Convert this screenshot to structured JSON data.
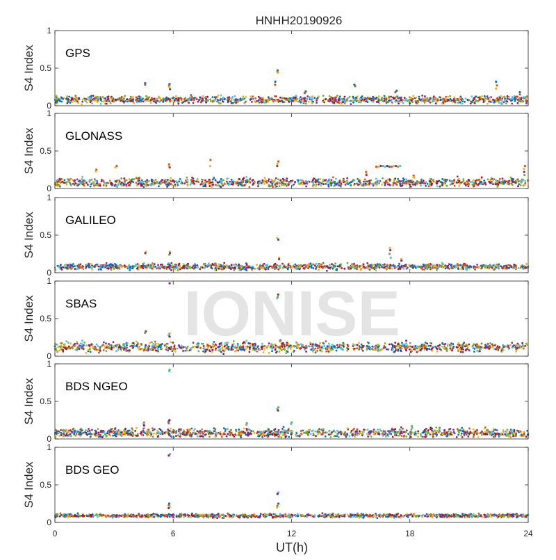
{
  "figure": {
    "title": "HNHH20190926",
    "xlabel": "UT(h)",
    "xticks": [
      "0",
      "6",
      "12",
      "18",
      "24"
    ],
    "watermark": "IONISE"
  },
  "palette": [
    "#0072BD",
    "#D95319",
    "#EDB120",
    "#7E2F8E",
    "#77AC30",
    "#4DBEEE",
    "#A2142F"
  ],
  "chart_data": [
    {
      "type": "scatter",
      "label": "GPS",
      "ylabel": "S4 Index",
      "yticks": [
        "0",
        "0.5",
        "1"
      ],
      "xlim": [
        0,
        24
      ],
      "ylim": [
        0,
        1
      ],
      "baseline": 0.08,
      "noise": 0.03,
      "features": [
        {
          "x": 4.6,
          "values": [
            0.3,
            0.28
          ]
        },
        {
          "x": 5.8,
          "values": [
            0.29,
            0.27,
            0.25,
            0.22
          ]
        },
        {
          "x": 11.3,
          "values": [
            0.47,
            0.45,
            0.44
          ]
        },
        {
          "x": 11.2,
          "values": [
            0.32,
            0.28
          ]
        },
        {
          "x": 12.7,
          "values": [
            0.19,
            0.17
          ]
        },
        {
          "x": 15.2,
          "values": [
            0.28,
            0.26
          ]
        },
        {
          "x": 17.3,
          "values": [
            0.2,
            0.18
          ]
        },
        {
          "x": 22.4,
          "values": [
            0.32,
            0.27,
            0.23
          ]
        },
        {
          "x": 23.6,
          "values": [
            0.18,
            0.15
          ]
        }
      ]
    },
    {
      "type": "scatter",
      "label": "GLONASS",
      "ylabel": "S4 Index",
      "yticks": [
        "0",
        "0.5",
        "1"
      ],
      "xlim": [
        0,
        24
      ],
      "ylim": [
        0,
        1
      ],
      "baseline": 0.08,
      "noise": 0.035,
      "features": [
        {
          "x": 2.1,
          "values": [
            0.25,
            0.23
          ]
        },
        {
          "x": 3.1,
          "values": [
            0.3,
            0.28
          ]
        },
        {
          "x": 5.8,
          "values": [
            0.32,
            0.3,
            0.28
          ]
        },
        {
          "x": 7.9,
          "values": [
            0.38,
            0.3
          ]
        },
        {
          "x": 11.3,
          "values": [
            0.36,
            0.33,
            0.3
          ]
        },
        {
          "x": 15.8,
          "values": [
            0.22,
            0.2,
            0.18
          ]
        },
        {
          "x": 16.3,
          "values": [
            0.29,
            0.29,
            0.3,
            0.3,
            0.29,
            0.3,
            0.29,
            0.29,
            0.3,
            0.3,
            0.29,
            0.3
          ]
        },
        {
          "x": 18.2,
          "values": [
            0.17,
            0.15
          ]
        },
        {
          "x": 23.8,
          "values": [
            0.3,
            0.26,
            0.22,
            0.18
          ]
        }
      ]
    },
    {
      "type": "scatter",
      "label": "GALILEO",
      "ylabel": "S4 Index",
      "yticks": [
        "0",
        "0.5",
        "1"
      ],
      "xlim": [
        0,
        24
      ],
      "ylim": [
        0,
        1
      ],
      "baseline": 0.08,
      "noise": 0.025,
      "features": [
        {
          "x": 4.6,
          "values": [
            0.28,
            0.26
          ]
        },
        {
          "x": 5.8,
          "values": [
            0.28,
            0.26,
            0.24
          ]
        },
        {
          "x": 11.3,
          "values": [
            0.46,
            0.44
          ]
        },
        {
          "x": 11.4,
          "values": [
            0.2,
            0.18
          ]
        },
        {
          "x": 17.0,
          "values": [
            0.33,
            0.3,
            0.25,
            0.2
          ]
        },
        {
          "x": 17.6,
          "values": [
            0.18,
            0.16
          ]
        }
      ]
    },
    {
      "type": "scatter",
      "label": "SBAS",
      "ylabel": "S4 Index",
      "yticks": [
        "0",
        "0.5",
        "1"
      ],
      "xlim": [
        0,
        24
      ],
      "ylim": [
        0,
        1
      ],
      "baseline": 0.12,
      "noise": 0.04,
      "features": [
        {
          "x": 4.6,
          "values": [
            0.33,
            0.31
          ]
        },
        {
          "x": 5.8,
          "values": [
            0.97,
            0.3,
            0.28,
            0.26
          ]
        },
        {
          "x": 11.3,
          "values": [
            0.82,
            0.79,
            0.77
          ]
        },
        {
          "x": 11.4,
          "values": [
            0.21,
            0.2
          ]
        }
      ]
    },
    {
      "type": "scatter",
      "label": "BDS NGEO",
      "ylabel": "S4 Index",
      "yticks": [
        "0",
        "0.5",
        "1"
      ],
      "xlim": [
        0,
        24
      ],
      "ylim": [
        0,
        1
      ],
      "baseline": 0.08,
      "noise": 0.035,
      "features": [
        {
          "x": 4.5,
          "values": [
            0.22,
            0.2,
            0.18
          ]
        },
        {
          "x": 5.8,
          "values": [
            0.92,
            0.9,
            0.25,
            0.23,
            0.21
          ]
        },
        {
          "x": 9.7,
          "values": [
            0.21,
            0.19
          ]
        },
        {
          "x": 11.3,
          "values": [
            0.42,
            0.4,
            0.38
          ]
        },
        {
          "x": 12.0,
          "values": [
            0.22,
            0.2
          ]
        },
        {
          "x": 18.1,
          "values": [
            0.17,
            0.15
          ]
        },
        {
          "x": 19.5,
          "values": [
            0.15,
            0.13
          ]
        }
      ]
    },
    {
      "type": "scatter",
      "label": "BDS GEO",
      "ylabel": "S4 Index",
      "yticks": [
        "0",
        "0.5",
        "1"
      ],
      "xlim": [
        0,
        24
      ],
      "ylim": [
        0,
        1
      ],
      "baseline": 0.09,
      "noise": 0.015,
      "features": [
        {
          "x": 5.8,
          "values": [
            0.91,
            0.89,
            0.25,
            0.23,
            0.21,
            0.19
          ]
        },
        {
          "x": 11.3,
          "values": [
            0.4,
            0.38,
            0.25,
            0.22,
            0.2
          ]
        }
      ]
    }
  ]
}
